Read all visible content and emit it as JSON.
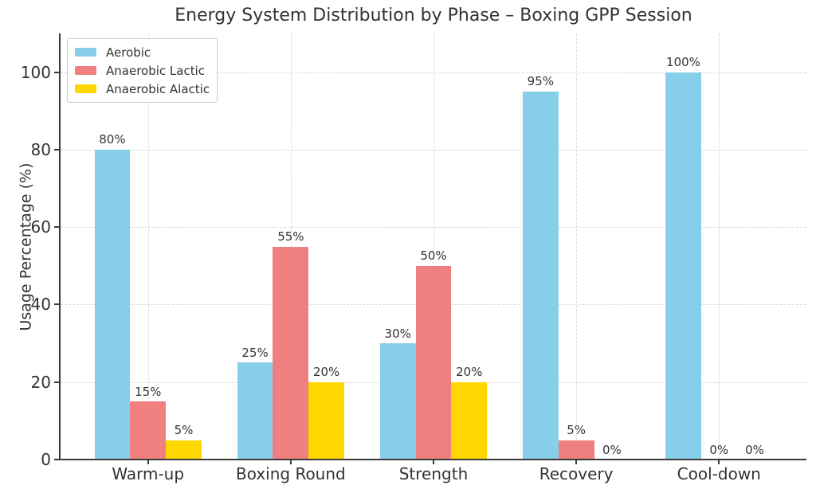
{
  "chart_data": {
    "type": "bar",
    "title": "Energy System Distribution by Phase – Boxing GPP Session",
    "ylabel": "Usage Percentage (%)",
    "xlabel": "",
    "categories": [
      "Warm-up",
      "Boxing Round",
      "Strength",
      "Recovery",
      "Cool-down"
    ],
    "series": [
      {
        "name": "Aerobic",
        "color": "#87CEEB",
        "values": [
          80,
          25,
          30,
          95,
          100
        ],
        "labels": [
          "80%",
          "25%",
          "30%",
          "95%",
          "100%"
        ]
      },
      {
        "name": "Anaerobic Lactic",
        "color": "#F08080",
        "values": [
          15,
          55,
          50,
          5,
          0
        ],
        "labels": [
          "15%",
          "55%",
          "50%",
          "5%",
          "0%"
        ]
      },
      {
        "name": "Anaerobic Alactic",
        "color": "#FFD700",
        "values": [
          5,
          20,
          20,
          0,
          0
        ],
        "labels": [
          "5%",
          "20%",
          "20%",
          "0%",
          "0%"
        ]
      }
    ],
    "ylim": [
      0,
      110
    ],
    "yticks": [
      0,
      20,
      40,
      60,
      80,
      100
    ],
    "ytick_labels": [
      "0",
      "20",
      "40",
      "60",
      "80",
      "100"
    ],
    "grid": "dashed, horizontal and vertical",
    "legend_position": "upper-left",
    "colors": {
      "background": "#ffffff",
      "text": "#333333",
      "axis": "#3a3a3a",
      "grid": "#d8d8d8",
      "legend_border": "#cccccc"
    }
  }
}
